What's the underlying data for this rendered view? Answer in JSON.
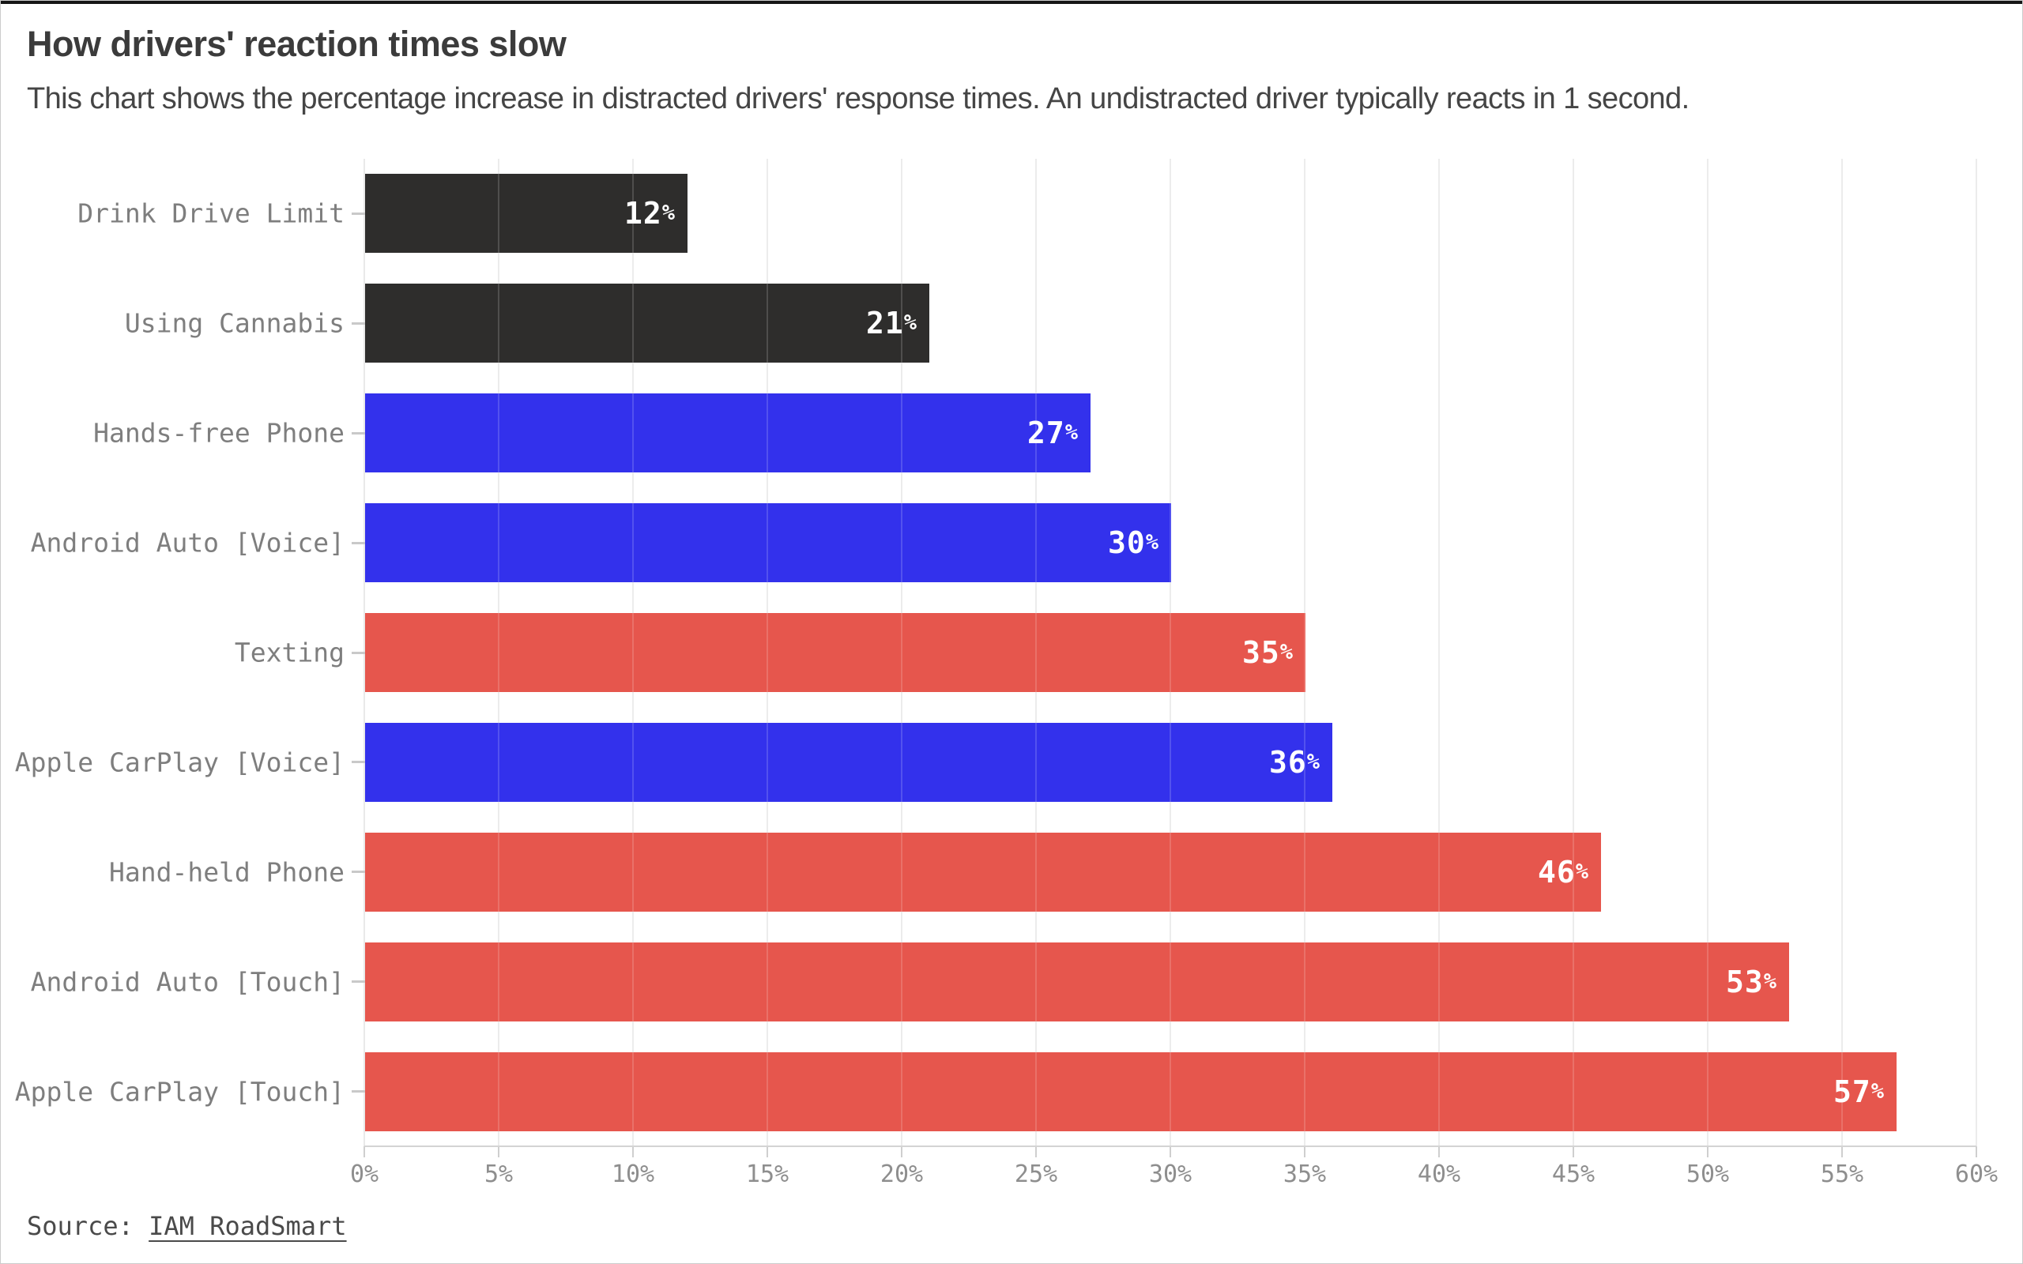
{
  "header": {
    "title": "How drivers' reaction times slow",
    "subtitle": "This chart shows the percentage increase in distracted drivers' response times. An undistracted driver typically reacts in 1 second."
  },
  "source": {
    "prefix": "Source: ",
    "link_text": "IAM RoadSmart"
  },
  "chart_data": {
    "type": "bar",
    "orientation": "horizontal",
    "title": "How drivers' reaction times slow",
    "categories": [
      "Drink Drive Limit",
      "Using Cannabis",
      "Hands-free Phone",
      "Android Auto [Voice]",
      "Texting",
      "Apple CarPlay [Voice]",
      "Hand-held Phone",
      "Android Auto [Touch]",
      "Apple CarPlay [Touch]"
    ],
    "values": [
      12,
      21,
      27,
      30,
      35,
      36,
      46,
      53,
      57
    ],
    "value_suffix": "%",
    "bar_colors": [
      "#2e2d2c",
      "#2e2d2c",
      "#3331ec",
      "#3331ec",
      "#e6564d",
      "#3331ec",
      "#e6564d",
      "#e6564d",
      "#e6564d"
    ],
    "color_legend": {
      "dark": "#2e2d2c",
      "blue": "#3331ec",
      "red": "#e6564d"
    },
    "xlabel": "",
    "ylabel": "",
    "xlim": [
      0,
      60
    ],
    "x_tick_step": 5,
    "x_ticks": [
      "0%",
      "5%",
      "10%",
      "15%",
      "20%",
      "25%",
      "30%",
      "35%",
      "40%",
      "45%",
      "50%",
      "55%",
      "60%"
    ],
    "grid": true,
    "grid_over_bars": true,
    "value_labels": "inside-end",
    "text_colors": {
      "title": "#3b3b3b",
      "subtitle": "#454545",
      "category_label": "#7e7e7e",
      "axis_label": "#8e8e8e",
      "value_label": "#ffffff"
    }
  }
}
